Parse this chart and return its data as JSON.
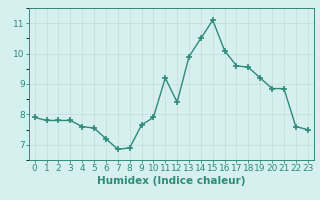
{
  "x": [
    0,
    1,
    2,
    3,
    4,
    5,
    6,
    7,
    8,
    9,
    10,
    11,
    12,
    13,
    14,
    15,
    16,
    17,
    18,
    19,
    20,
    21,
    22,
    23
  ],
  "y": [
    7.9,
    7.8,
    7.8,
    7.8,
    7.6,
    7.55,
    7.2,
    6.85,
    6.9,
    7.65,
    7.9,
    9.2,
    8.4,
    9.9,
    10.5,
    11.1,
    10.1,
    9.6,
    9.55,
    9.2,
    8.85,
    8.85,
    7.6,
    7.5
  ],
  "xlim": [
    -0.5,
    23.5
  ],
  "ylim": [
    6.5,
    11.5
  ],
  "yticks": [
    7,
    8,
    9,
    10,
    11
  ],
  "xticks": [
    0,
    1,
    2,
    3,
    4,
    5,
    6,
    7,
    8,
    9,
    10,
    11,
    12,
    13,
    14,
    15,
    16,
    17,
    18,
    19,
    20,
    21,
    22,
    23
  ],
  "xlabel": "Humidex (Indice chaleur)",
  "line_color": "#2e8b7a",
  "marker": "+",
  "marker_size": 4,
  "line_width": 1.0,
  "bg_color": "#d6f0f0",
  "grid_color_major": "#c8dada",
  "grid_color_minor": "#daeaea",
  "tick_label_fontsize": 6.5,
  "xlabel_fontsize": 7.5
}
